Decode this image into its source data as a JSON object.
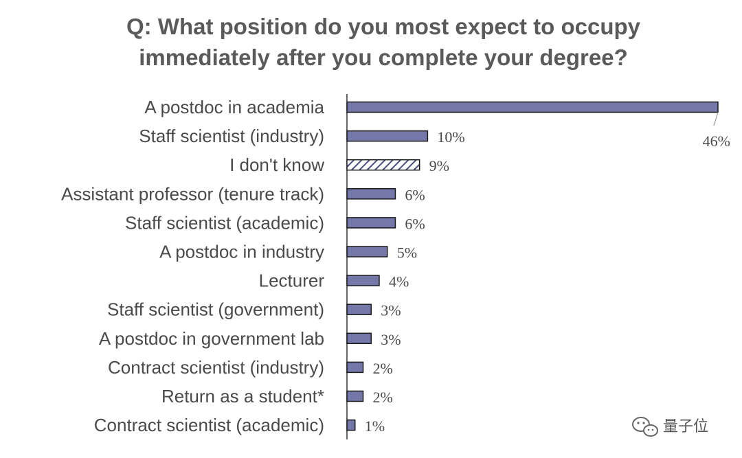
{
  "colors": {
    "bar_fill": "#7478a8",
    "bar_stroke": "#1a1a1a",
    "hatch_stroke": "#4a4e82",
    "text": "#4a4a4a",
    "title": "#5a5a5a"
  },
  "chart_data": {
    "type": "bar",
    "orientation": "horizontal",
    "title": "Q: What position do you most expect to occupy immediately after you complete your degree?",
    "title_lines": [
      "Q: What position do you most expect to occupy",
      "immediately after you complete your degree?"
    ],
    "categories": [
      "A postdoc in academia",
      "Staff scientist (industry)",
      "I don't know",
      "Assistant professor (tenure track)",
      "Staff scientist (academic)",
      "A postdoc in industry",
      "Lecturer",
      "Staff scientist (government)",
      "A postdoc in government lab",
      "Contract scientist (industry)",
      "Return as a student*",
      "Contract scientist (academic)"
    ],
    "values": [
      46,
      10,
      9,
      6,
      6,
      5,
      4,
      3,
      3,
      2,
      2,
      1
    ],
    "value_labels": [
      "46%",
      "10%",
      "9%",
      "6%",
      "6%",
      "5%",
      "4%",
      "3%",
      "3%",
      "2%",
      "2%",
      "1%"
    ],
    "hatched": [
      false,
      false,
      true,
      false,
      false,
      false,
      false,
      false,
      false,
      false,
      false,
      false
    ],
    "unit": "%",
    "xlim": [
      0,
      46
    ],
    "grid": false,
    "legend": "none"
  },
  "watermark": {
    "icon": "wechat-icon",
    "text": "量子位"
  }
}
